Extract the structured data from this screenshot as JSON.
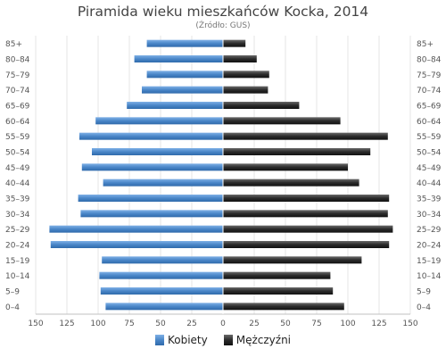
{
  "chart_data": {
    "type": "bar",
    "orientation": "horizontal-population-pyramid",
    "title": "Piramida wieku mieszkańców Kocka, 2014",
    "subtitle": "(Źródło: GUS)",
    "categories": [
      "85+",
      "80–84",
      "75–79",
      "70–74",
      "65–69",
      "60–64",
      "55–59",
      "50–54",
      "45–49",
      "40–44",
      "35–39",
      "30–34",
      "25–29",
      "20–24",
      "15–19",
      "10–14",
      "5–9",
      "0–4"
    ],
    "series": [
      {
        "name": "Kobiety",
        "side": "left",
        "color": "#4a86c8",
        "values": [
          61,
          71,
          61,
          65,
          77,
          102,
          115,
          105,
          113,
          96,
          116,
          114,
          139,
          138,
          97,
          99,
          98,
          94
        ]
      },
      {
        "name": "Mężczyźni",
        "side": "right",
        "color": "#2b2b2b",
        "values": [
          18,
          27,
          37,
          36,
          61,
          94,
          132,
          118,
          100,
          109,
          133,
          132,
          136,
          133,
          111,
          86,
          88,
          97
        ]
      }
    ],
    "xlim": [
      -150,
      150
    ],
    "xticks": [
      "150",
      "125",
      "100",
      "75",
      "50",
      "25",
      "0",
      "25",
      "50",
      "75",
      "100",
      "125",
      "150"
    ],
    "grid": true,
    "legend_position": "bottom-center"
  },
  "colors": {
    "female": "#4a86c8",
    "male": "#2b2b2b",
    "grid": "#e6e6e6",
    "axis_text": "#555555"
  }
}
